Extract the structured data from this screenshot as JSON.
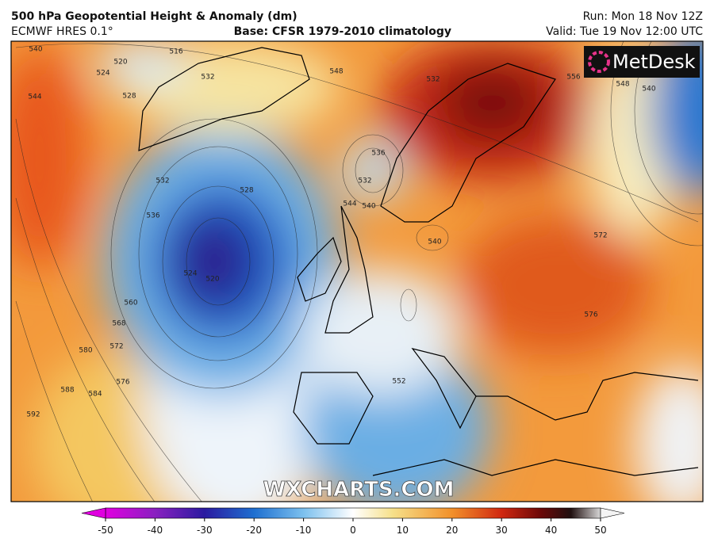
{
  "header": {
    "title": "500 hPa Geopotential Height & Anomaly (dm)",
    "model": "ECMWF HRES 0.1°",
    "base": "Base: CFSR 1979-2010 climatology",
    "run": "Run: Mon 18 Nov 12Z",
    "valid": "Valid: Tue 19 Nov 12:00 UTC"
  },
  "logo": "MetDesk",
  "watermark": "WXCHARTS.COM",
  "colorbar": {
    "range": [
      -50,
      50
    ],
    "ticks": [
      -50,
      -40,
      -30,
      -20,
      -10,
      0,
      10,
      20,
      30,
      40,
      50
    ]
  },
  "contour_labels": [
    "540",
    "520",
    "524",
    "528",
    "544",
    "532",
    "516",
    "548",
    "532",
    "556",
    "548",
    "540",
    "536",
    "532",
    "540",
    "544",
    "540",
    "532",
    "536",
    "528",
    "520",
    "524",
    "560",
    "568",
    "572",
    "580",
    "576",
    "584",
    "588",
    "592",
    "552",
    "572",
    "576"
  ]
}
